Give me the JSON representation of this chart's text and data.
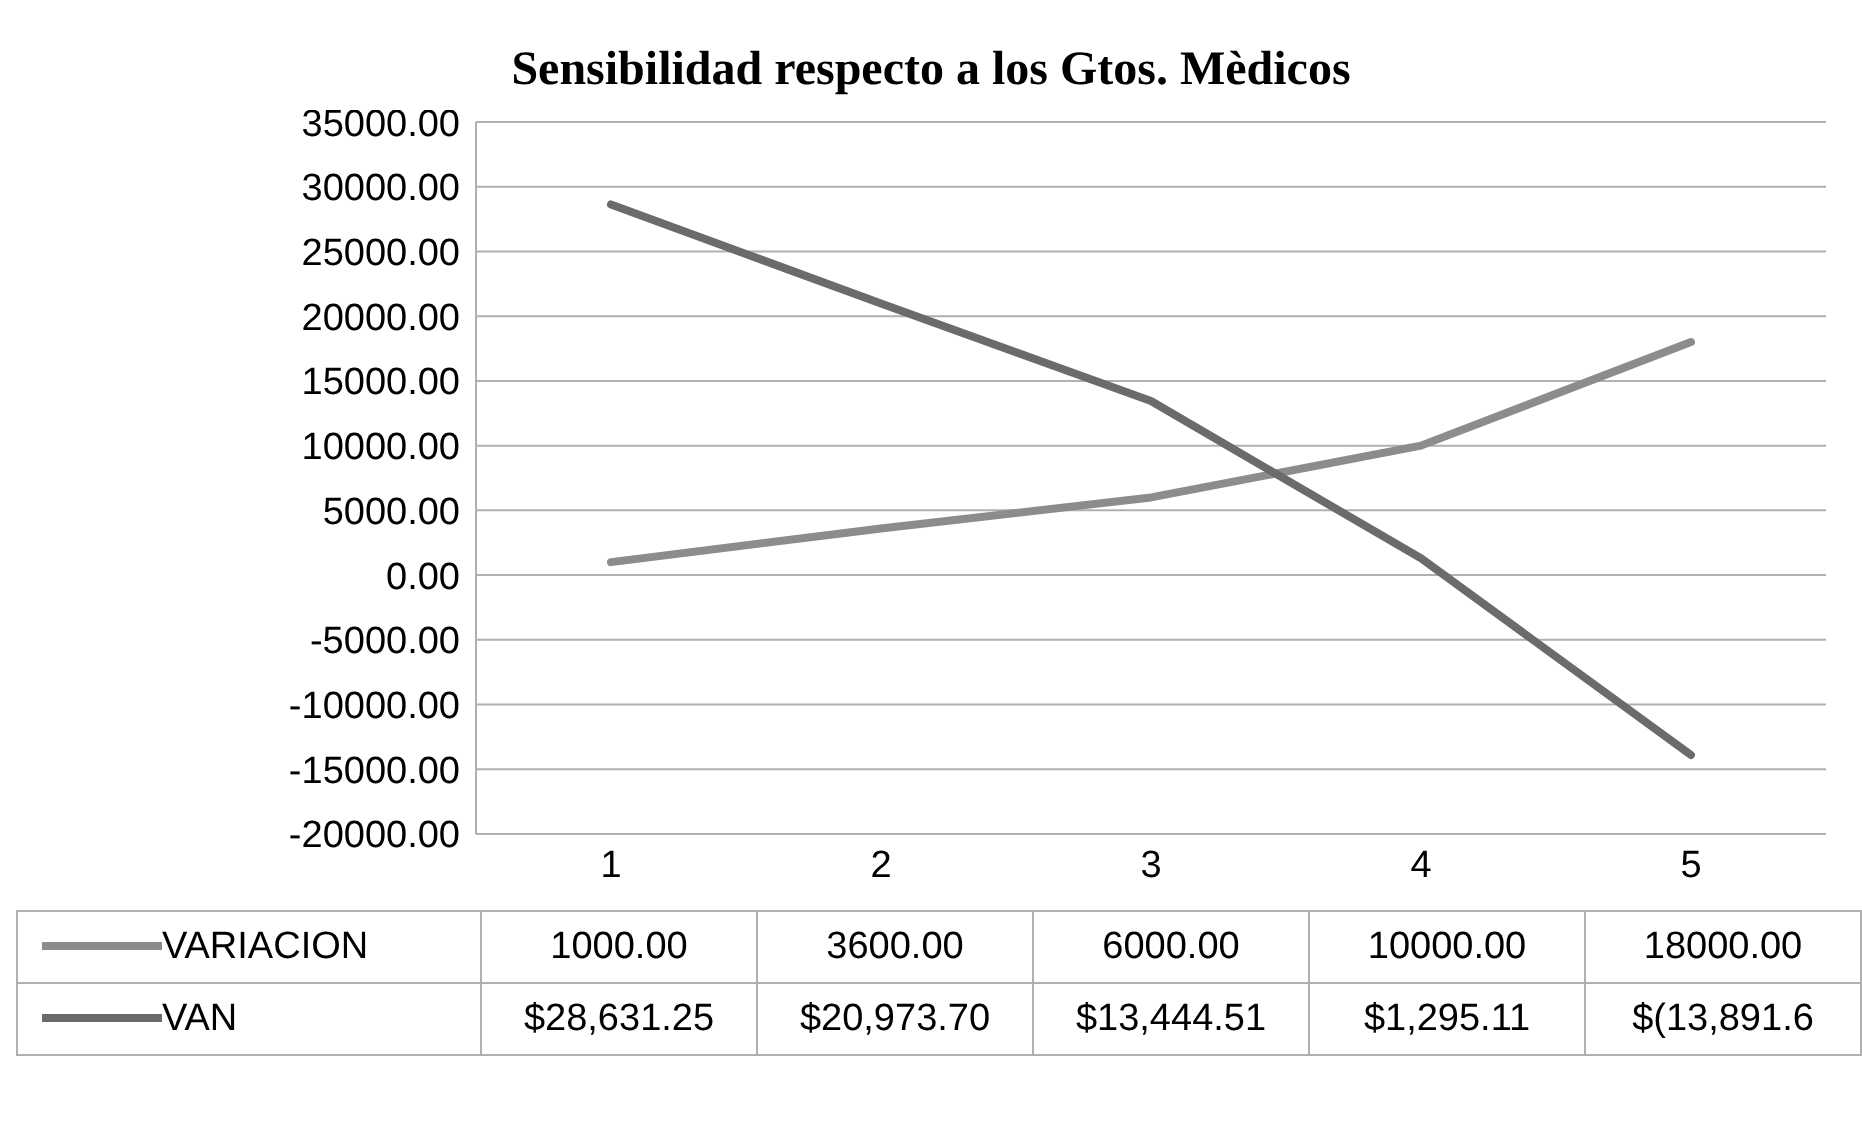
{
  "chart_data": {
    "type": "line",
    "title": "Sensibilidad respecto a los Gtos. Mèdicos",
    "categories": [
      "1",
      "2",
      "3",
      "4",
      "5"
    ],
    "series": [
      {
        "name": "VARIACION",
        "color": "#8c8c8c",
        "values": [
          1000,
          3600,
          6000,
          10000,
          18000
        ],
        "value_labels": [
          "1000.00",
          "3600.00",
          "6000.00",
          "10000.00",
          "18000.00"
        ]
      },
      {
        "name": "VAN",
        "color": "#6b6b6b",
        "values": [
          28631.25,
          20973.7,
          13444.51,
          1295.11,
          -13891.6
        ],
        "value_labels": [
          "$28,631.25",
          "$20,973.70",
          "$13,444.51",
          "$1,295.11",
          "$(13,891.6"
        ]
      }
    ],
    "ylim": [
      -20000,
      35000
    ],
    "yticks": [
      {
        "value": -20000,
        "label": "-20000.00"
      },
      {
        "value": -15000,
        "label": "-15000.00"
      },
      {
        "value": -10000,
        "label": "-10000.00"
      },
      {
        "value": -5000,
        "label": "-5000.00"
      },
      {
        "value": 0,
        "label": "0.00"
      },
      {
        "value": 5000,
        "label": "5000.00"
      },
      {
        "value": 10000,
        "label": "10000.00"
      },
      {
        "value": 15000,
        "label": "15000.00"
      },
      {
        "value": 20000,
        "label": "20000.00"
      },
      {
        "value": 25000,
        "label": "25000.00"
      },
      {
        "value": 30000,
        "label": "30000.00"
      },
      {
        "value": 35000,
        "label": "35000.00"
      }
    ],
    "grid": "y",
    "legend": "bottom",
    "marker": "none",
    "line_style": "solid"
  }
}
